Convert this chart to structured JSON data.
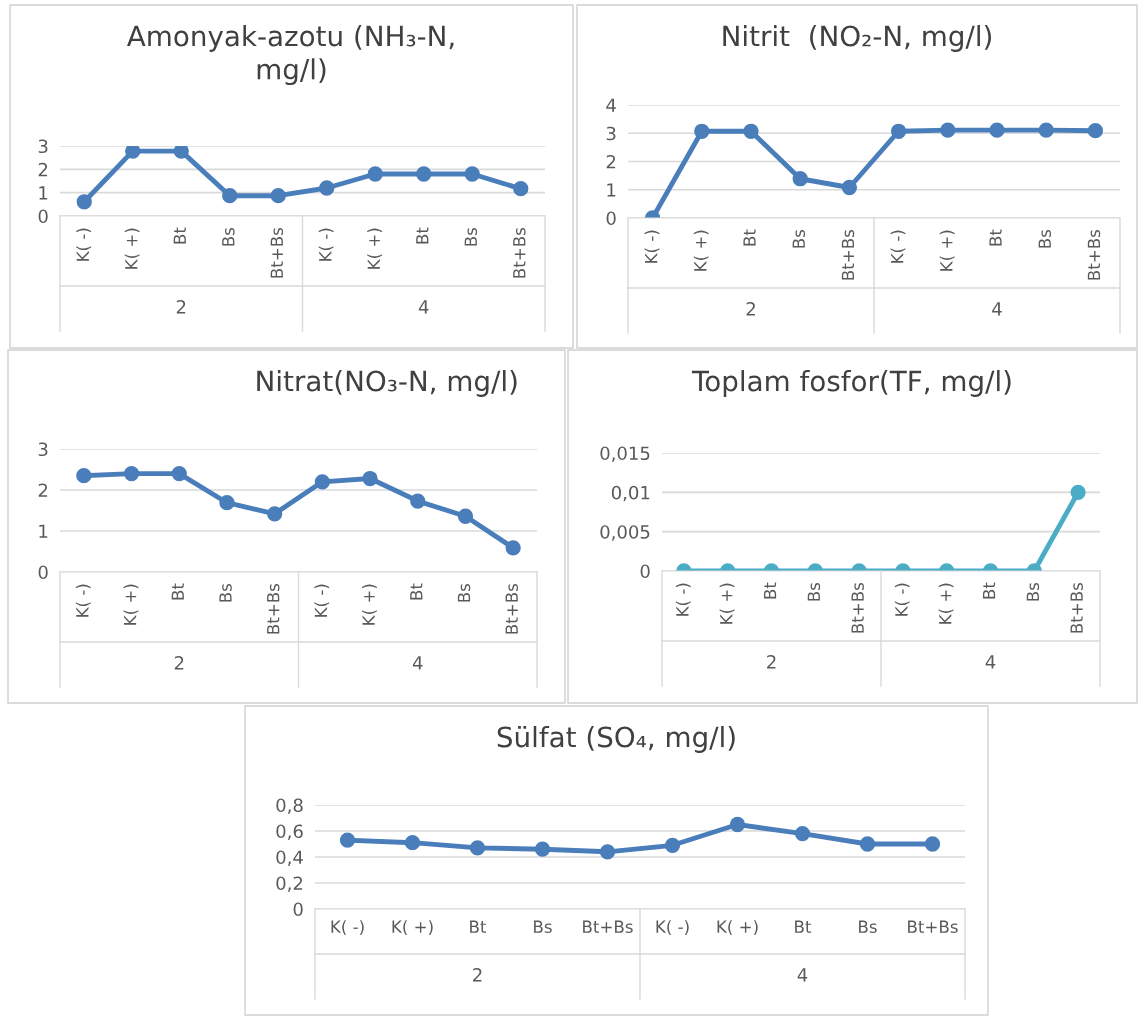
{
  "chart_data": [
    {
      "type": "line",
      "title": "Amonyak-azotu (NH₃-N,\nmg/l)",
      "categories": [
        "K( -)",
        "K( +)",
        "Bt",
        "Bs",
        "Bt+Bs",
        "K( -)",
        "K( +)",
        "Bt",
        "Bs",
        "Bt+Bs"
      ],
      "series": [
        {
          "color": "#4a7ebb",
          "values": [
            0.61,
            2.78,
            2.78,
            0.87,
            0.87,
            1.2,
            1.8,
            1.8,
            1.8,
            1.17
          ]
        }
      ],
      "annotations": [
        "2",
        "4"
      ],
      "ylim": [
        0,
        3
      ],
      "yticks": [
        0,
        1,
        2,
        3
      ],
      "grid": "y",
      "legend": false,
      "marker": "circle",
      "line_style": "solid"
    },
    {
      "type": "line",
      "title": "Nitrit  (NO₂-N, mg/l)",
      "categories": [
        "K( -)",
        "K( +)",
        "Bt",
        "Bs",
        "Bt+Bs",
        "K( -)",
        "K( +)",
        "Bt",
        "Bs",
        "Bt+Bs"
      ],
      "series": [
        {
          "color": "#4a7ebb",
          "values": [
            0,
            3.07,
            3.07,
            1.39,
            1.08,
            3.07,
            3.11,
            3.11,
            3.11,
            3.09
          ]
        }
      ],
      "annotations": [
        "2",
        "4"
      ],
      "ylim": [
        0,
        4
      ],
      "yticks": [
        0,
        1,
        2,
        3,
        4
      ],
      "grid": "y",
      "legend": false,
      "marker": "circle",
      "line_style": "solid"
    },
    {
      "type": "line",
      "title": "Nitrat(NO₃-N, mg/l)",
      "categories": [
        "K( -)",
        "K( +)",
        "Bt",
        "Bs",
        "Bt+Bs",
        "K( -)",
        "K( +)",
        "Bt",
        "Bs",
        "Bt+Bs"
      ],
      "series": [
        {
          "color": "#4a7ebb",
          "values": [
            2.35,
            2.4,
            2.4,
            1.69,
            1.42,
            2.2,
            2.28,
            1.73,
            1.36,
            0.59
          ]
        }
      ],
      "annotations": [
        "2",
        "4"
      ],
      "ylim": [
        0,
        3
      ],
      "yticks": [
        0,
        1,
        2,
        3
      ],
      "grid": "y",
      "legend": false,
      "marker": "circle",
      "line_style": "solid"
    },
    {
      "type": "line",
      "title": "Toplam fosfor(TF, mg/l)",
      "categories": [
        "K( -)",
        "K( +)",
        "Bt",
        "Bs",
        "Bt+Bs",
        "K( -)",
        "K( +)",
        "Bt",
        "Bs",
        "Bt+Bs"
      ],
      "series": [
        {
          "color": "#4bacc6",
          "values": [
            0,
            0,
            0,
            0,
            0,
            0,
            0,
            0,
            0,
            0.01
          ]
        }
      ],
      "annotations": [
        "2",
        "4"
      ],
      "ylim": [
        0,
        0.015
      ],
      "yticks": [
        0,
        {
          "value": 0.005,
          "label": "0,005"
        },
        {
          "value": 0.01,
          "label": "0,01"
        },
        {
          "value": 0.015,
          "label": "0,015"
        }
      ],
      "grid": "y",
      "legend": false,
      "marker": "circle",
      "line_style": "solid"
    },
    {
      "type": "line",
      "title": "Sülfat (SO₄, mg/l)",
      "categories": [
        "K( -)",
        "K( +)",
        "Bt",
        "Bs",
        "Bt+Bs",
        "K( -)",
        "K( +)",
        "Bt",
        "Bs",
        "Bt+Bs"
      ],
      "series": [
        {
          "color": "#4a7ebb",
          "values": [
            0.53,
            0.51,
            0.47,
            0.46,
            0.44,
            0.49,
            0.65,
            0.58,
            0.5,
            0.5
          ]
        }
      ],
      "annotations": [
        "2",
        "4"
      ],
      "ylim": [
        0,
        0.8
      ],
      "yticks": [
        0,
        {
          "value": 0.2,
          "label": "0,2"
        },
        {
          "value": 0.4,
          "label": "0,4"
        },
        {
          "value": 0.6,
          "label": "0,6"
        },
        {
          "value": 0.8,
          "label": "0,8"
        }
      ],
      "grid": "y",
      "legend": false,
      "marker": "circle",
      "line_style": "solid"
    }
  ]
}
